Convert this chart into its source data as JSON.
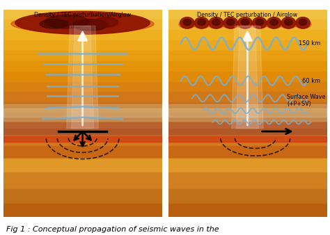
{
  "title": "Fig 1 : Conceptual propagation of seismic waves in the",
  "left_panel_title": "Density / TEC perturbation/Airglow",
  "right_panel_title": "Density / TEC perturbation / Airglow",
  "label_150km": "150 km",
  "label_60km": "60 km",
  "label_surface_wave": "Surface Wave\n(+P+SV)",
  "wave_color": "#7ab0d0",
  "background_color": "#ffffff"
}
